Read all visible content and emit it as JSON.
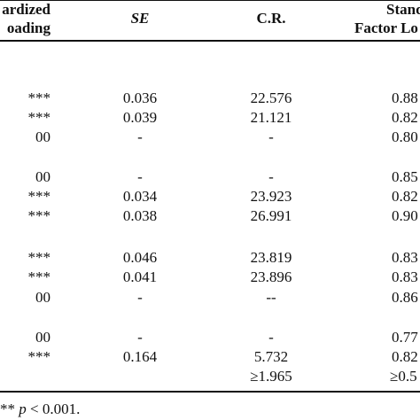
{
  "header": {
    "col1_line1": "ardized",
    "col1_line2": "oading",
    "col2": "SE",
    "col3": "C.R.",
    "col4_line1": "Standar",
    "col4_line2": "Factor Lo"
  },
  "rows": [
    {
      "col1": "***",
      "col2": "0.036",
      "col3": "22.576",
      "col4": "0.88"
    },
    {
      "col1": "***",
      "col2": "0.039",
      "col3": "21.121",
      "col4": "0.82"
    },
    {
      "col1": "00",
      "col2": "-",
      "col3": "-",
      "col4": "0.80"
    },
    {
      "col1": "00",
      "col2": "-",
      "col3": "-",
      "col4": "0.85"
    },
    {
      "col1": "***",
      "col2": "0.034",
      "col3": "23.923",
      "col4": "0.82"
    },
    {
      "col1": "***",
      "col2": "0.038",
      "col3": "26.991",
      "col4": "0.90"
    },
    {
      "col1": "***",
      "col2": "0.046",
      "col3": "23.819",
      "col4": "0.83"
    },
    {
      "col1": "***",
      "col2": "0.041",
      "col3": "23.896",
      "col4": "0.83"
    },
    {
      "col1": "00",
      "col2": "-",
      "col3": "--",
      "col4": "0.86"
    },
    {
      "col1": "00",
      "col2": "-",
      "col3": "-",
      "col4": "0.77"
    },
    {
      "col1": "***",
      "col2": "0.164",
      "col3": "5.732",
      "col4": "0.82"
    },
    {
      "col1": "",
      "col2": "",
      "col3": "≥1.965",
      "col4": "≥0.5"
    }
  ],
  "footnote": {
    "stars": "**",
    "p": "p",
    "rest": " < 0.001."
  }
}
